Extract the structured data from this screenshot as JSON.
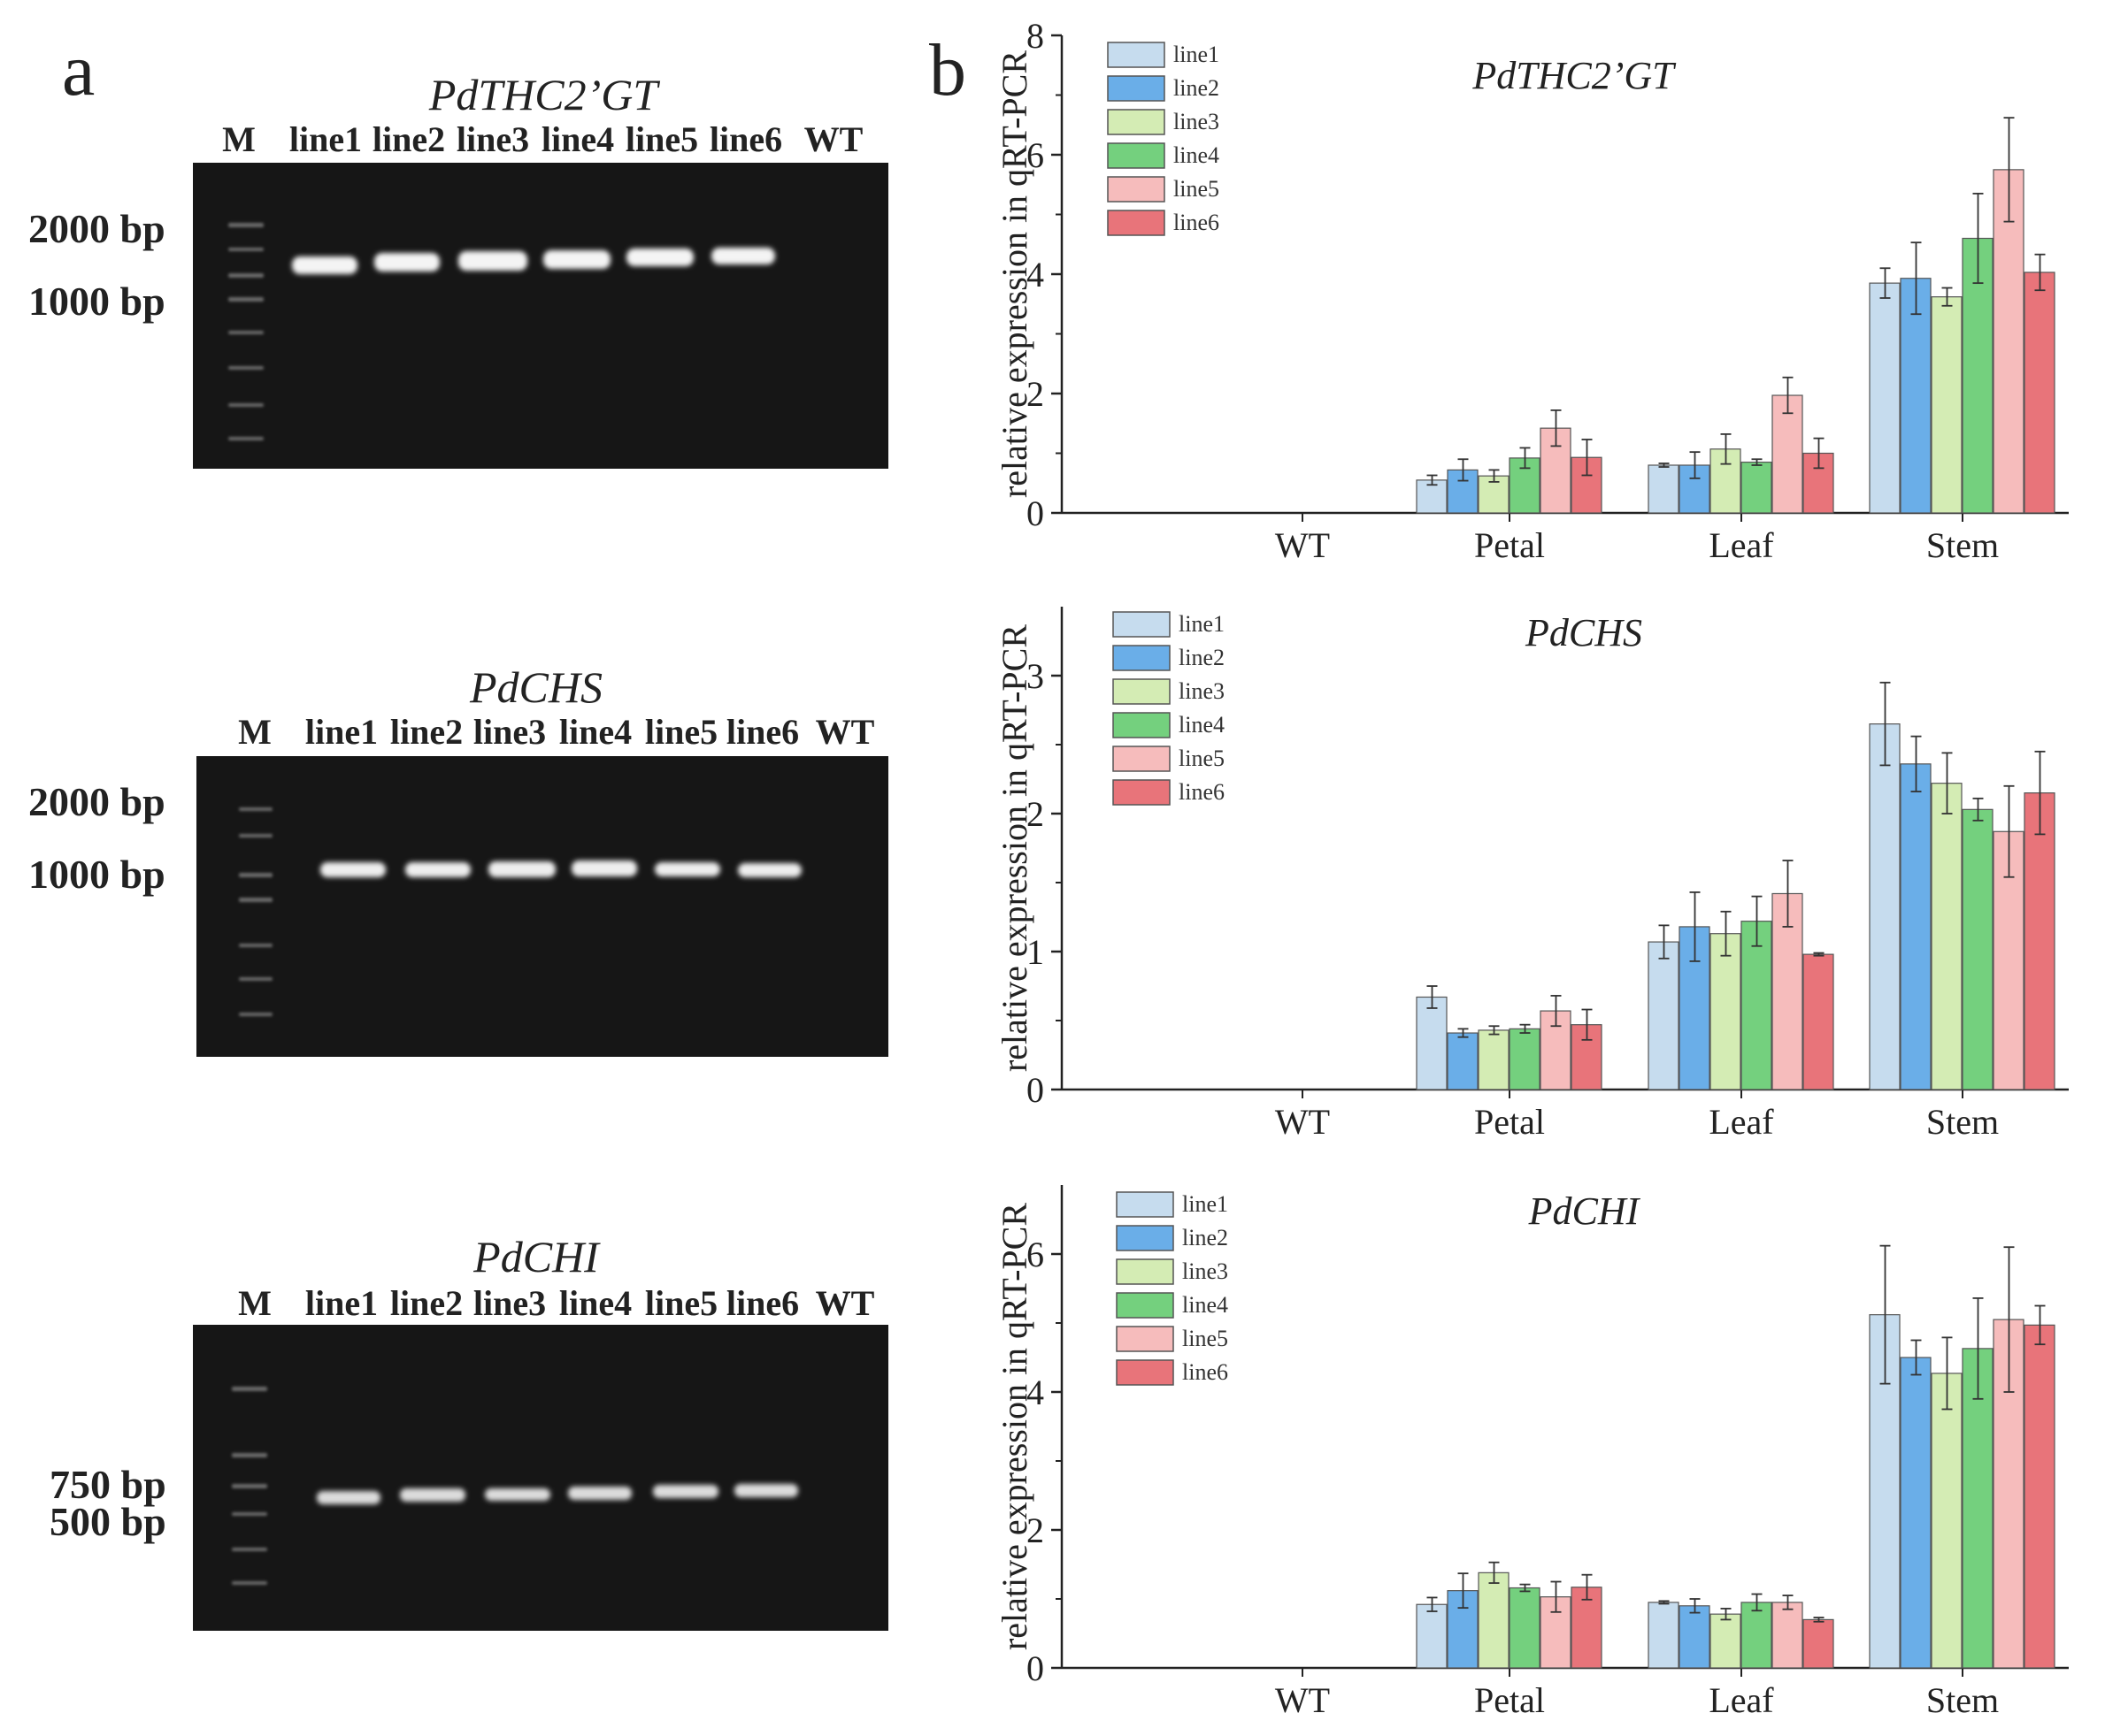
{
  "panel_a": {
    "letter": "a",
    "gels": [
      {
        "title": "PdTHC2’GT",
        "lanes": [
          "M",
          "line1",
          "line2",
          "line3",
          "line4",
          "line5",
          "line6",
          "WT"
        ],
        "markers": [
          "2000 bp",
          "1000 bp"
        ]
      },
      {
        "title": "PdCHS",
        "lanes": [
          "M",
          "line1",
          "line2",
          "line3",
          "line4",
          "line5",
          "line6",
          "WT"
        ],
        "markers": [
          "2000 bp",
          "1000 bp"
        ]
      },
      {
        "title": "PdCHI",
        "lanes": [
          "M",
          "line1",
          "line2",
          "line3",
          "line4",
          "line5",
          "line6",
          "WT"
        ],
        "markers": [
          "750 bp",
          "500 bp"
        ]
      }
    ]
  },
  "panel_b": {
    "letter": "b"
  },
  "colors": {
    "line1": "#c6dcee",
    "line2": "#6aaee8",
    "line3": "#d4ecb4",
    "line4": "#74d07e",
    "line5": "#f6bcbc",
    "line6": "#e8747a",
    "gel_bg": "#161616"
  },
  "chart_data": [
    {
      "type": "bar",
      "title": "PdTHC2’GT",
      "xlabel": "",
      "ylabel": "relative expression in qRT-PCR",
      "ylim": [
        0,
        8
      ],
      "yticks": [
        0,
        2,
        4,
        6,
        8
      ],
      "categories": [
        "WT",
        "Petal",
        "Leaf",
        "Stem"
      ],
      "legend_position": "top-left",
      "series": [
        {
          "name": "line1",
          "values": [
            0,
            0.55,
            0.8,
            3.85
          ],
          "errors": [
            0,
            0.08,
            0.03,
            0.25
          ]
        },
        {
          "name": "line2",
          "values": [
            0,
            0.72,
            0.8,
            3.93
          ],
          "errors": [
            0,
            0.18,
            0.22,
            0.6
          ]
        },
        {
          "name": "line3",
          "values": [
            0,
            0.62,
            1.07,
            3.62
          ],
          "errors": [
            0,
            0.1,
            0.25,
            0.15
          ]
        },
        {
          "name": "line4",
          "values": [
            0,
            0.92,
            0.85,
            4.6
          ],
          "errors": [
            0,
            0.17,
            0.05,
            0.75
          ]
        },
        {
          "name": "line5",
          "values": [
            0,
            1.42,
            1.97,
            5.75
          ],
          "errors": [
            0,
            0.3,
            0.3,
            0.87
          ]
        },
        {
          "name": "line6",
          "values": [
            0,
            0.93,
            1.0,
            4.03
          ],
          "errors": [
            0,
            0.3,
            0.25,
            0.3
          ]
        }
      ]
    },
    {
      "type": "bar",
      "title": "PdCHS",
      "xlabel": "",
      "ylabel": "relative expression in qRT-PCR",
      "ylim": [
        0,
        3.5
      ],
      "yticks": [
        0,
        1,
        2,
        3
      ],
      "categories": [
        "WT",
        "Petal",
        "Leaf",
        "Stem"
      ],
      "legend_position": "top-left",
      "series": [
        {
          "name": "line1",
          "values": [
            0,
            0.67,
            1.07,
            2.65
          ],
          "errors": [
            0,
            0.08,
            0.12,
            0.3
          ]
        },
        {
          "name": "line2",
          "values": [
            0,
            0.41,
            1.18,
            2.36
          ],
          "errors": [
            0,
            0.03,
            0.25,
            0.2
          ]
        },
        {
          "name": "line3",
          "values": [
            0,
            0.43,
            1.13,
            2.22
          ],
          "errors": [
            0,
            0.03,
            0.16,
            0.22
          ]
        },
        {
          "name": "line4",
          "values": [
            0,
            0.44,
            1.22,
            2.03
          ],
          "errors": [
            0,
            0.03,
            0.18,
            0.08
          ]
        },
        {
          "name": "line5",
          "values": [
            0,
            0.57,
            1.42,
            1.87
          ],
          "errors": [
            0,
            0.11,
            0.24,
            0.33
          ]
        },
        {
          "name": "line6",
          "values": [
            0,
            0.47,
            0.98,
            2.15
          ],
          "errors": [
            0,
            0.11,
            0.01,
            0.3
          ]
        }
      ]
    },
    {
      "type": "bar",
      "title": "PdCHI",
      "xlabel": "",
      "ylabel": "relative expression in qRT-PCR",
      "ylim": [
        0,
        7
      ],
      "yticks": [
        0,
        2,
        4,
        6
      ],
      "categories": [
        "WT",
        "Petal",
        "Leaf",
        "Stem"
      ],
      "legend_position": "top-left",
      "series": [
        {
          "name": "line1",
          "values": [
            0,
            0.92,
            0.95,
            5.12
          ],
          "errors": [
            0,
            0.1,
            0.02,
            1.0
          ]
        },
        {
          "name": "line2",
          "values": [
            0,
            1.12,
            0.9,
            4.5
          ],
          "errors": [
            0,
            0.25,
            0.1,
            0.25
          ]
        },
        {
          "name": "line3",
          "values": [
            0,
            1.38,
            0.78,
            4.27
          ],
          "errors": [
            0,
            0.15,
            0.08,
            0.52
          ]
        },
        {
          "name": "line4",
          "values": [
            0,
            1.16,
            0.95,
            4.63
          ],
          "errors": [
            0,
            0.05,
            0.12,
            0.73
          ]
        },
        {
          "name": "line5",
          "values": [
            0,
            1.03,
            0.95,
            5.05
          ],
          "errors": [
            0,
            0.22,
            0.1,
            1.05
          ]
        },
        {
          "name": "line6",
          "values": [
            0,
            1.17,
            0.7,
            4.97
          ],
          "errors": [
            0,
            0.18,
            0.03,
            0.28
          ]
        }
      ]
    }
  ]
}
